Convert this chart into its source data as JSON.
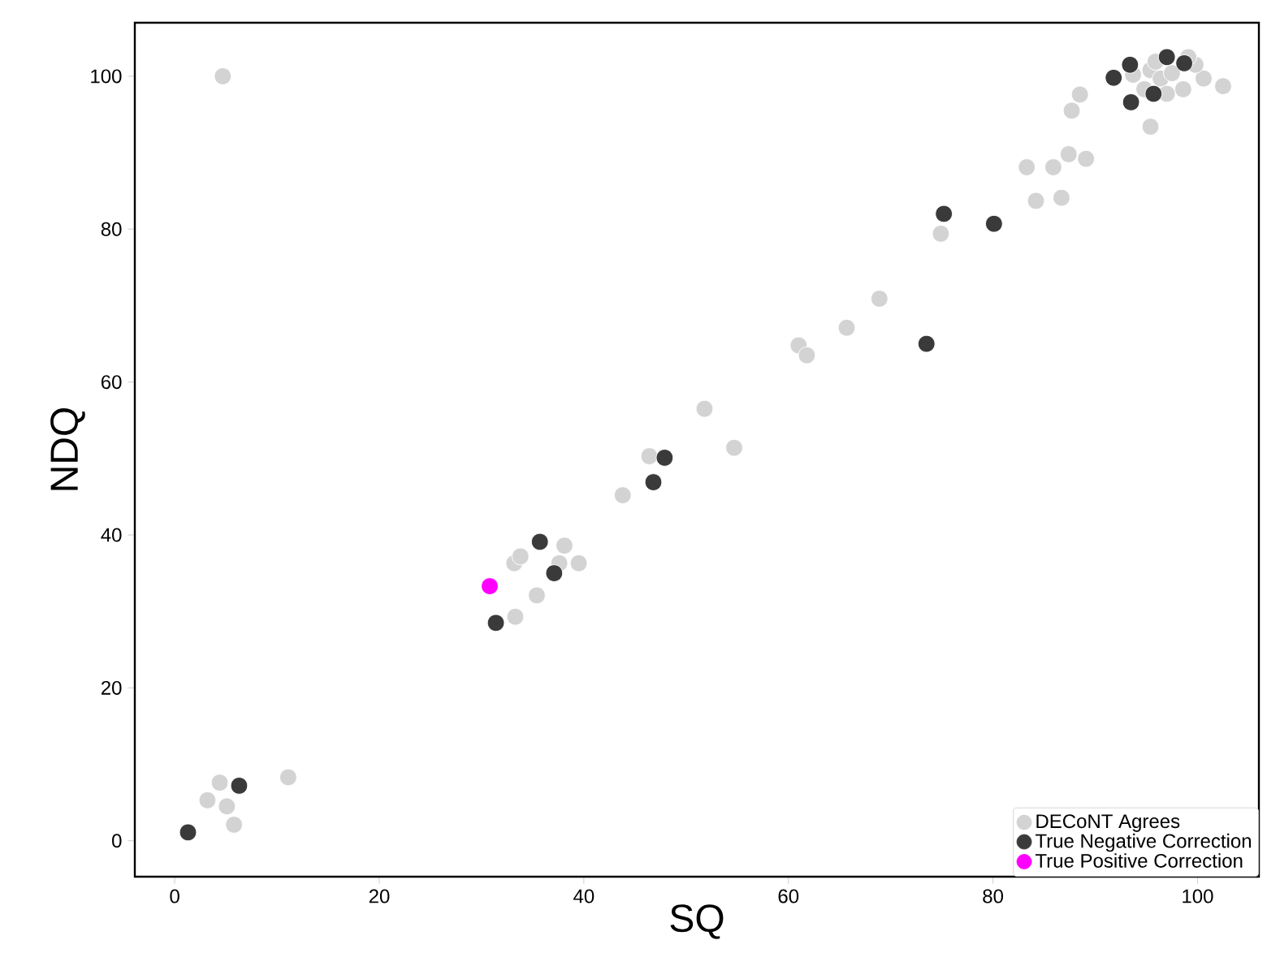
{
  "chart_data": {
    "type": "scatter",
    "xlabel": "SQ",
    "ylabel": "NDQ",
    "xlim": [
      -3.9,
      106
    ],
    "ylim": [
      -4.7,
      107
    ],
    "xticks": [
      0,
      20,
      40,
      60,
      80,
      100
    ],
    "yticks": [
      0,
      20,
      40,
      60,
      80,
      100
    ],
    "grid": false,
    "legend": "bottom right",
    "marker": "circle",
    "series": [
      {
        "name": "DECoNT Agrees",
        "color": "#d3d3d3",
        "x": [
          4.7,
          4.4,
          3.2,
          5.1,
          5.8,
          11.1,
          33.3,
          35.4,
          33.2,
          33.8,
          38.1,
          39.5,
          37.6,
          43.8,
          46.4,
          51.8,
          54.7,
          68.9,
          65.7,
          61.0,
          61.8,
          74.9,
          84.2,
          83.3,
          85.9,
          86.7,
          87.4,
          89.1,
          87.7,
          88.5,
          95.4,
          102.5,
          93.7,
          95.4,
          96.4,
          97.5,
          100.6,
          99.8,
          98.6,
          97.0,
          94.8,
          95.9,
          99.1
        ],
        "values": [
          100,
          7.6,
          5.3,
          4.5,
          2.1,
          8.3,
          29.3,
          32.1,
          36.3,
          37.2,
          38.6,
          36.3,
          36.3,
          45.2,
          50.3,
          56.5,
          51.4,
          70.9,
          67.1,
          64.8,
          63.5,
          79.4,
          83.7,
          88.1,
          88.1,
          84.1,
          89.8,
          89.2,
          95.5,
          97.6,
          93.4,
          98.7,
          100.2,
          100.8,
          99.7,
          100.4,
          99.7,
          101.5,
          98.3,
          97.7,
          98.3,
          101.9,
          102.5
        ]
      },
      {
        "name": "True Negative Correction",
        "color": "#3a3a3a",
        "x": [
          1.3,
          6.3,
          31.4,
          35.7,
          37.1,
          46.8,
          47.9,
          73.5,
          75.2,
          80.1,
          91.8,
          93.4,
          93.5,
          97.0,
          98.7,
          95.7
        ],
        "values": [
          1.1,
          7.2,
          28.5,
          39.1,
          35.0,
          46.9,
          50.1,
          65.0,
          82.0,
          80.7,
          99.8,
          101.5,
          96.6,
          102.5,
          101.7,
          97.7
        ]
      },
      {
        "name": "True Positive Correction",
        "color": "#ff00ff",
        "x": [
          30.8
        ],
        "values": [
          33.3
        ]
      }
    ]
  }
}
